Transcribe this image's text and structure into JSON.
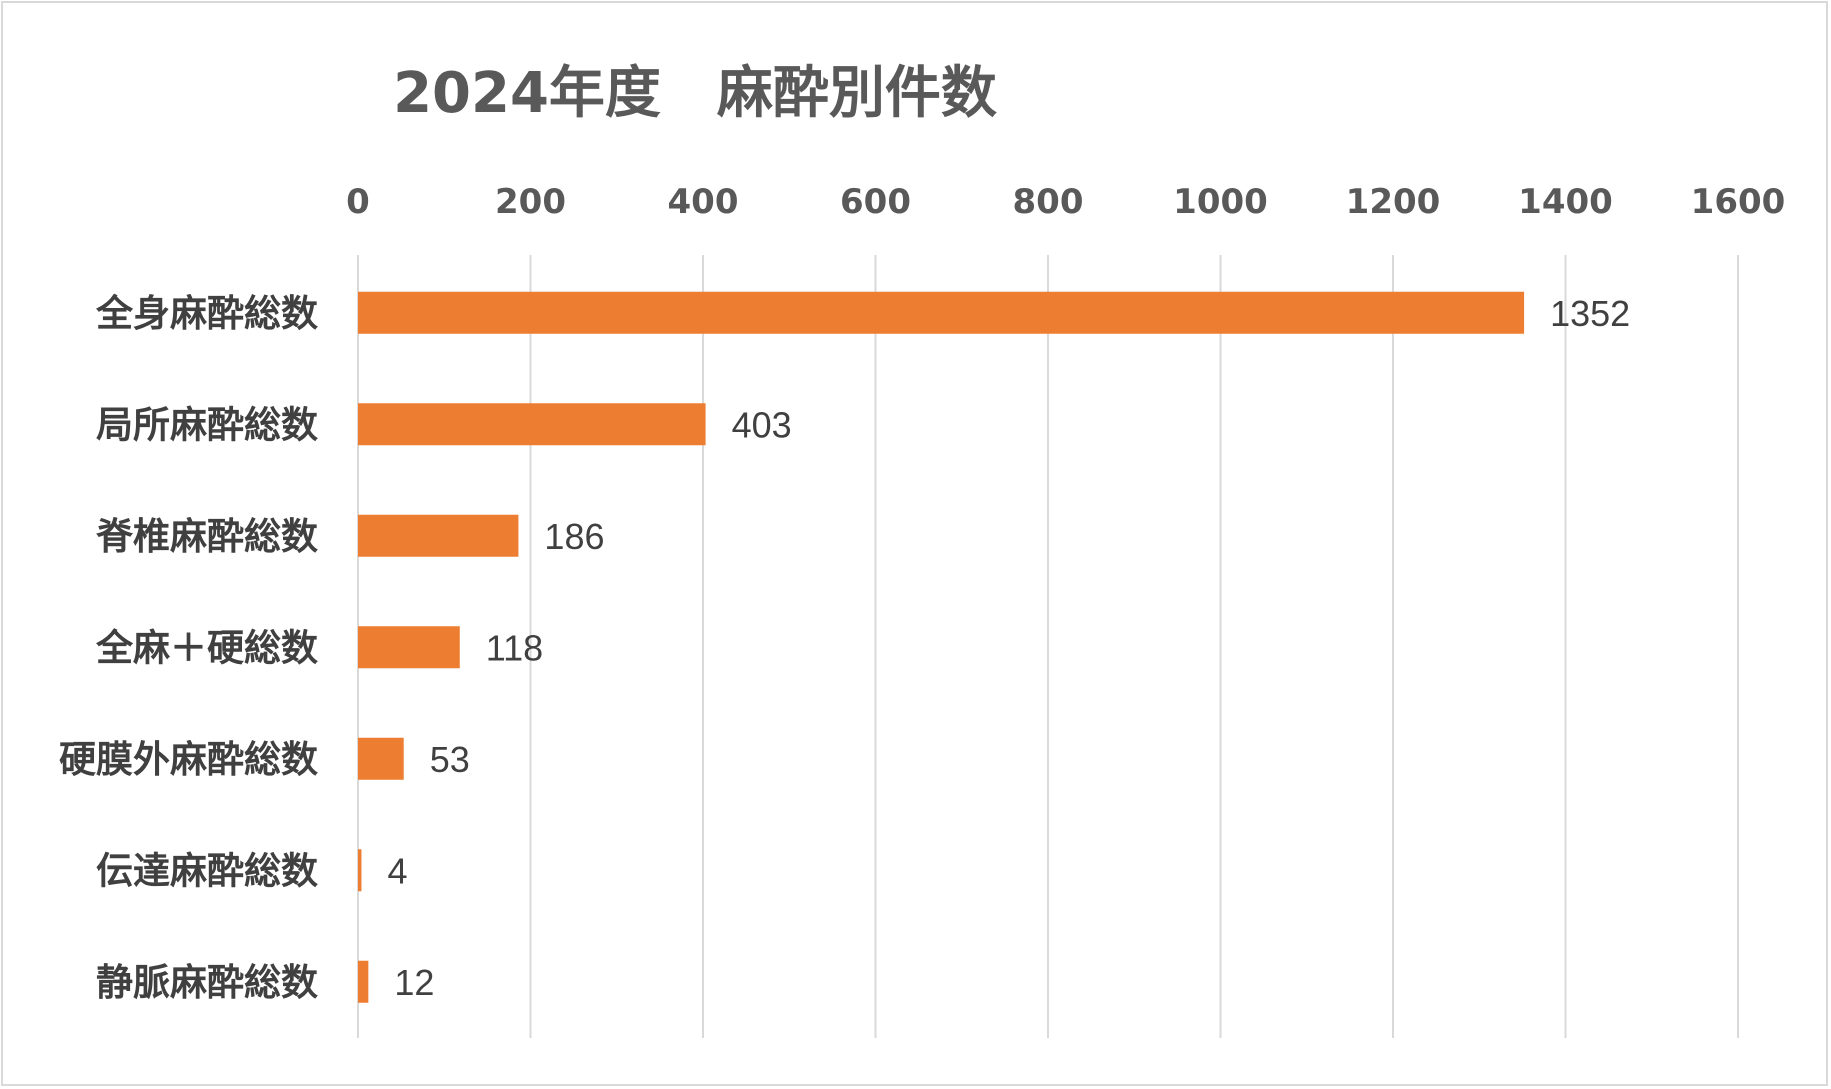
{
  "chart_data": {
    "type": "bar",
    "orientation": "horizontal",
    "title": "2024年度　麻酔別件数",
    "categories": [
      "全身麻酔総数",
      "局所麻酔総数",
      "脊椎麻酔総数",
      "全麻＋硬総数",
      "硬膜外麻酔総数",
      "伝達麻酔総数",
      "静脈麻酔総数"
    ],
    "values": [
      1352,
      403,
      186,
      118,
      53,
      4,
      12
    ],
    "xlim": [
      0,
      1600
    ],
    "xticks": [
      0,
      200,
      400,
      600,
      800,
      1000,
      1200,
      1400,
      1600
    ],
    "xaxis_position": "top",
    "grid": "vertical",
    "data_labels": true,
    "legend": "none",
    "bar_color": "#ED7D31"
  }
}
